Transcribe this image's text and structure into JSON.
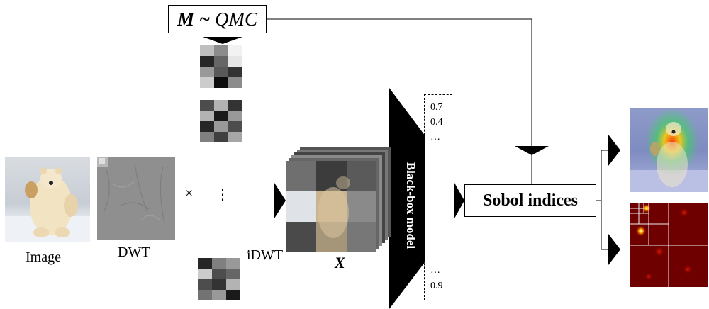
{
  "sampler": {
    "label_m": "M",
    "label_tilde": " ~ ",
    "label_rest": "QMC"
  },
  "labels": {
    "image": "Image",
    "dwt": "DWT",
    "idwt": "iDWT",
    "x": "X",
    "times": "×",
    "vdots": "⋮"
  },
  "model": {
    "label": "Black-box model"
  },
  "scores": {
    "top": [
      "0.7",
      "0.4",
      "…"
    ],
    "bottom": [
      "…",
      "0.9"
    ]
  },
  "sobol": {
    "label": "Sobol indices"
  },
  "colors": {
    "line": "#000000",
    "heat_dark": "#6e0000",
    "grid": "#eeeeee"
  },
  "masks": [
    [
      [
        0.75,
        0.55,
        0.95
      ],
      [
        0.15,
        0.4,
        0.9
      ],
      [
        0.6,
        0.35,
        0.2
      ],
      [
        0.8,
        0.05,
        0.55
      ]
    ],
    [
      [
        0.3,
        0.7,
        0.2
      ],
      [
        0.7,
        0.1,
        0.6
      ],
      [
        0.15,
        0.6,
        0.3
      ],
      [
        0.5,
        0.25,
        0.65
      ]
    ],
    [
      [
        0.15,
        0.5,
        0.6
      ],
      [
        0.8,
        0.3,
        0.4
      ],
      [
        0.3,
        0.2,
        0.7
      ],
      [
        0.45,
        0.6,
        0.1
      ]
    ]
  ]
}
